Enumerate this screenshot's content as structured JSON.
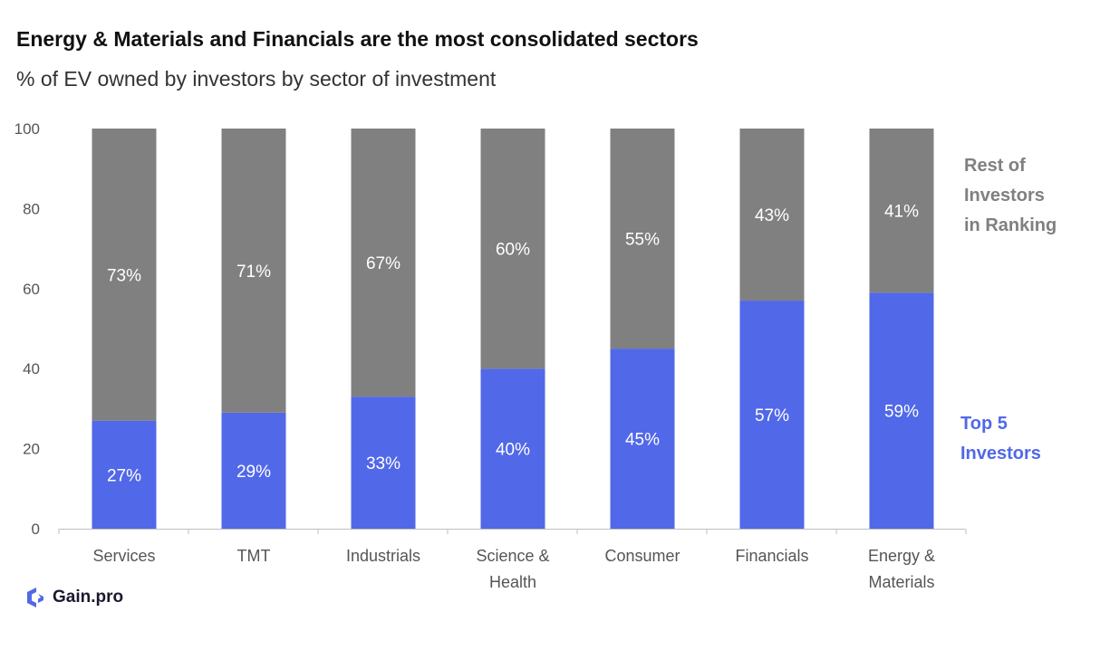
{
  "header": {
    "title": "Energy & Materials and Financials are the most consolidated sectors",
    "subtitle": "% of EV owned by investors by sector of investment"
  },
  "legend": {
    "rest_label": "Rest of\nInvestors\nin Ranking",
    "top_label": "Top 5\nInvestors"
  },
  "logo": {
    "text": "Gain.pro",
    "icon": "gain-pro-logo-icon"
  },
  "colors": {
    "top5": "#5168E8",
    "rest": "#808080",
    "axis": "#bfbfbf",
    "tick_text": "#555555"
  },
  "chart_data": {
    "type": "bar",
    "stacked": true,
    "categories": [
      [
        "Services"
      ],
      [
        "TMT"
      ],
      [
        "Industrials"
      ],
      [
        "Science &",
        "Health"
      ],
      [
        "Consumer"
      ],
      [
        "Financials"
      ],
      [
        "Energy &",
        "Materials"
      ]
    ],
    "series": [
      {
        "name": "Top 5 Investors",
        "values": [
          27,
          29,
          33,
          40,
          45,
          57,
          59
        ],
        "labels": [
          "27%",
          "29%",
          "33%",
          "40%",
          "45%",
          "57%",
          "59%"
        ]
      },
      {
        "name": "Rest of Investors in Ranking",
        "values": [
          73,
          71,
          67,
          60,
          55,
          43,
          41
        ],
        "labels": [
          "73%",
          "71%",
          "67%",
          "60%",
          "55%",
          "43%",
          "41%"
        ]
      }
    ],
    "yticks": [
      "0",
      "20",
      "40",
      "60",
      "80",
      "100"
    ],
    "ylim": [
      0,
      100
    ],
    "grid": false,
    "legend_placement": "right"
  }
}
